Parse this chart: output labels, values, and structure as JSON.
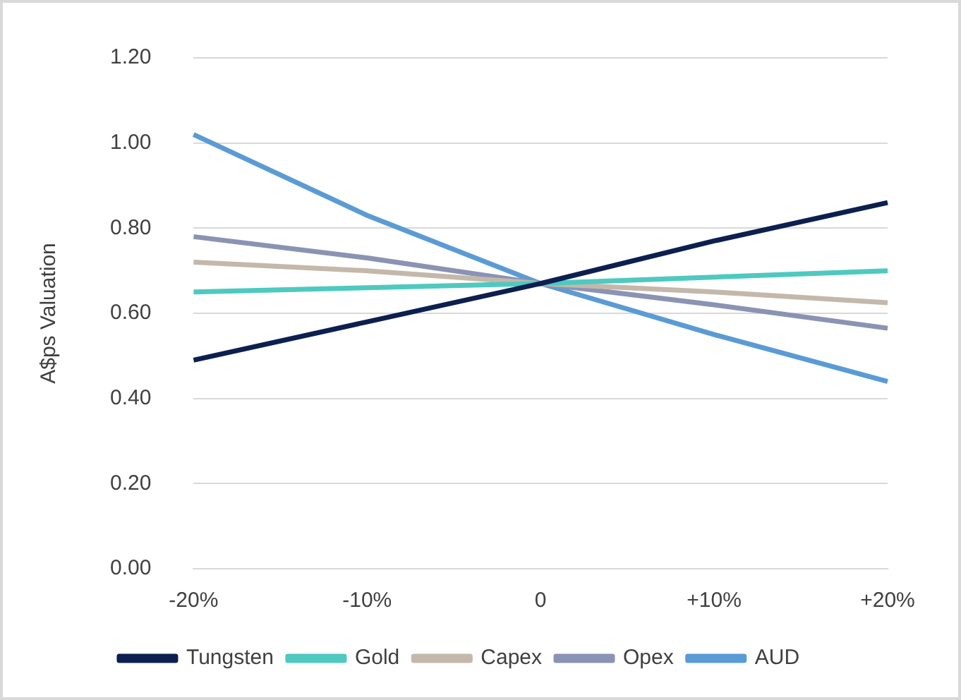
{
  "chart_data": {
    "type": "line",
    "ylabel": "A$ps Valuation",
    "categories": [
      "-20%",
      "-10%",
      "0",
      "+10%",
      "+20%"
    ],
    "series": [
      {
        "name": "Tungsten",
        "color": "#0d1f4f",
        "values": [
          0.49,
          0.58,
          0.67,
          0.77,
          0.86
        ]
      },
      {
        "name": "Gold",
        "color": "#4fc9c0",
        "values": [
          0.65,
          0.66,
          0.67,
          0.685,
          0.7
        ]
      },
      {
        "name": "Capex",
        "color": "#c4b8ab",
        "values": [
          0.72,
          0.7,
          0.67,
          0.65,
          0.625
        ]
      },
      {
        "name": "Opex",
        "color": "#8a93b3",
        "values": [
          0.78,
          0.73,
          0.67,
          0.62,
          0.565
        ]
      },
      {
        "name": "AUD",
        "color": "#5b9bd5",
        "values": [
          1.02,
          0.83,
          0.67,
          0.55,
          0.44
        ]
      }
    ],
    "ylim": [
      0,
      1.2
    ],
    "yticks": [
      {
        "value": 0,
        "label": "0.00"
      },
      {
        "value": 0.2,
        "label": "0.20"
      },
      {
        "value": 0.4,
        "label": "0.40"
      },
      {
        "value": 0.6,
        "label": "0.60"
      },
      {
        "value": 0.8,
        "label": "0.80"
      },
      {
        "value": 1,
        "label": "1.00"
      },
      {
        "value": 1.2,
        "label": "1.20"
      }
    ],
    "grid": "y",
    "legend": "bottom",
    "marker": "none",
    "line_style": "solid"
  }
}
